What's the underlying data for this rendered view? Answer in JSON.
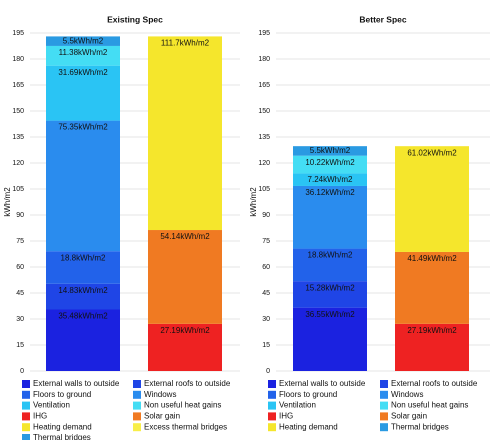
{
  "chart_data": [
    {
      "type": "bar",
      "title": "Existing Spec",
      "y_label": "kWh/m2",
      "stacked": true,
      "grid": true,
      "categories": [
        null,
        null
      ],
      "ylim": [
        0,
        195
      ],
      "yticks": [
        0,
        15,
        30,
        45,
        60,
        75,
        90,
        105,
        120,
        135,
        150,
        165,
        180,
        195
      ],
      "series": [
        {
          "name": "External walls to outside",
          "color": "#1b22e0",
          "values": [
            35.48,
            null
          ],
          "value_labels": [
            "35.48kWh/m2",
            null
          ]
        },
        {
          "name": "External roofs to outside",
          "color": "#1f45e6",
          "values": [
            14.83,
            null
          ],
          "value_labels": [
            "14.83kWh/m2",
            null
          ]
        },
        {
          "name": "Floors to ground",
          "color": "#2262ea",
          "values": [
            18.8,
            null
          ],
          "value_labels": [
            "18.8kWh/m2",
            null
          ]
        },
        {
          "name": "Windows",
          "color": "#2a8cee",
          "values": [
            75.35,
            null
          ],
          "value_labels": [
            "75.35kWh/m2",
            null
          ]
        },
        {
          "name": "Ventilation",
          "color": "#2ac4f4",
          "values": [
            31.69,
            null
          ],
          "value_labels": [
            "31.69kWh/m2",
            null
          ]
        },
        {
          "name": "Non useful heat gains",
          "color": "#44ddf4",
          "values": [
            11.38,
            null
          ],
          "value_labels": [
            "11.38kWh/m2",
            null
          ]
        },
        {
          "name": "IHG",
          "color": "#ee2222",
          "values": [
            null,
            27.19
          ],
          "value_labels": [
            null,
            "27.19kWh/m2"
          ]
        },
        {
          "name": "Solar gain",
          "color": "#f07a22",
          "values": [
            null,
            54.14
          ],
          "value_labels": [
            null,
            "54.14kWh/m2"
          ]
        },
        {
          "name": "Heating demand",
          "color": "#f5e62c",
          "values": [
            null,
            111.7
          ],
          "value_labels": [
            null,
            "111.7kWh/m2"
          ]
        },
        {
          "name": "Excess thermal bridges",
          "color": "#f8ee48",
          "values": [
            null,
            null
          ],
          "value_labels": [
            null,
            null
          ]
        },
        {
          "name": "Thermal bridges",
          "color": "#2a9ae2",
          "values": [
            5.5,
            null
          ],
          "value_labels": [
            "5.5kWh/m2",
            null
          ]
        }
      ]
    },
    {
      "type": "bar",
      "title": "Better Spec",
      "y_label": "kWh/m2",
      "stacked": true,
      "grid": true,
      "categories": [
        null,
        null
      ],
      "ylim": [
        0,
        195
      ],
      "yticks": [
        0,
        15,
        30,
        45,
        60,
        75,
        90,
        105,
        120,
        135,
        150,
        165,
        180,
        195
      ],
      "series": [
        {
          "name": "External walls to outside",
          "color": "#1b22e0",
          "values": [
            36.55,
            null
          ],
          "value_labels": [
            "36.55kWh/m2",
            null
          ]
        },
        {
          "name": "External roofs to outside",
          "color": "#1f45e6",
          "values": [
            15.28,
            null
          ],
          "value_labels": [
            "15.28kWh/m2",
            null
          ]
        },
        {
          "name": "Floors to ground",
          "color": "#2262ea",
          "values": [
            18.8,
            null
          ],
          "value_labels": [
            "18.8kWh/m2",
            null
          ]
        },
        {
          "name": "Windows",
          "color": "#2a8cee",
          "values": [
            36.12,
            null
          ],
          "value_labels": [
            "36.12kWh/m2",
            null
          ]
        },
        {
          "name": "Ventilation",
          "color": "#2ac4f4",
          "values": [
            7.24,
            null
          ],
          "value_labels": [
            "7.24kWh/m2",
            null
          ]
        },
        {
          "name": "Non useful heat gains",
          "color": "#44ddf4",
          "values": [
            10.22,
            null
          ],
          "value_labels": [
            "10.22kWh/m2",
            null
          ]
        },
        {
          "name": "IHG",
          "color": "#ee2222",
          "values": [
            null,
            27.19
          ],
          "value_labels": [
            null,
            "27.19kWh/m2"
          ]
        },
        {
          "name": "Solar gain",
          "color": "#f07a22",
          "values": [
            null,
            41.49
          ],
          "value_labels": [
            null,
            "41.49kWh/m2"
          ]
        },
        {
          "name": "Heating demand",
          "color": "#f5e62c",
          "values": [
            null,
            61.02
          ],
          "value_labels": [
            null,
            "61.02kWh/m2"
          ]
        },
        {
          "name": "Thermal bridges",
          "color": "#2a9ae2",
          "values": [
            5.5,
            null
          ],
          "value_labels": [
            "5.5kWh/m2",
            null
          ]
        }
      ]
    }
  ]
}
